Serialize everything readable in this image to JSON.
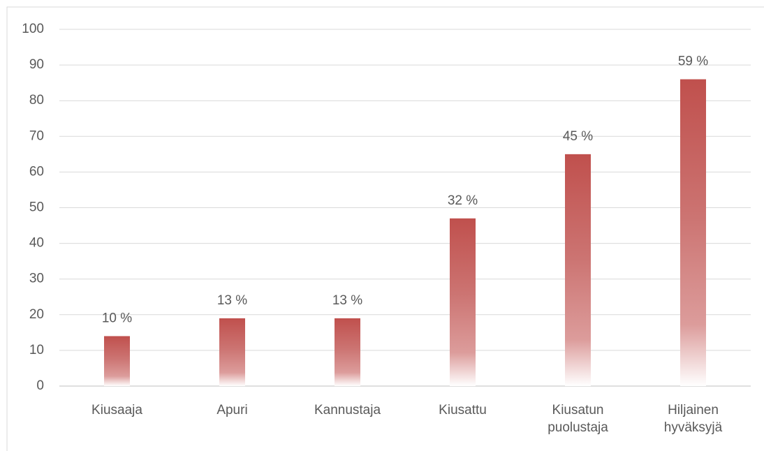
{
  "chart_data": {
    "type": "bar",
    "categories": [
      "Kiusaaja",
      "Apuri",
      "Kannustaja",
      "Kiusattu",
      "Kiusatun puolustaja",
      "Hiljainen hyväksyjä"
    ],
    "values": [
      14,
      19,
      19,
      47,
      65,
      86
    ],
    "data_labels": [
      "10 %",
      "13 %",
      "13 %",
      "32 %",
      "45 %",
      "59 %"
    ],
    "color": "#c0504d",
    "ylim": [
      0,
      100
    ],
    "yticks": [
      0,
      10,
      20,
      30,
      40,
      50,
      60,
      70,
      80,
      90,
      100
    ],
    "grid": true
  }
}
